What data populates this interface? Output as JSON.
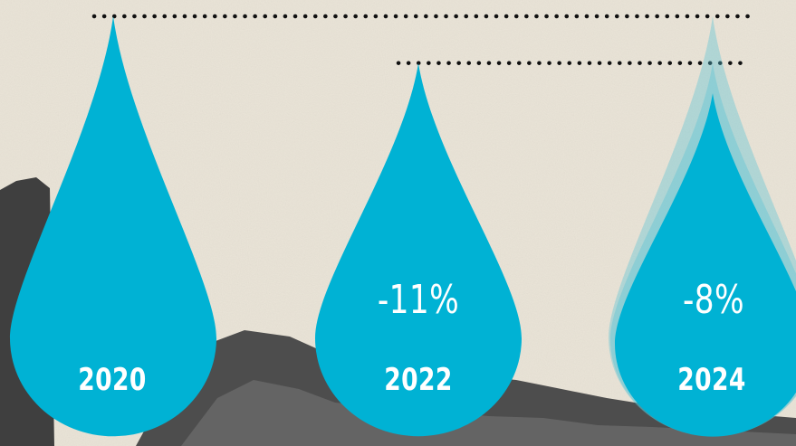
{
  "chart_data": {
    "type": "pictograph",
    "title": "",
    "categories": [
      "2020",
      "2022",
      "2024"
    ],
    "values": [
      100,
      89,
      81.88
    ],
    "changes": [
      "",
      "-11%",
      "-8%"
    ],
    "reference_lines": [
      "dotted",
      "dotted"
    ],
    "colors": {
      "drop": "#00b2d4",
      "drop_ghost": "#58c3d4",
      "background": "#e9e3d6",
      "mountain": "#4a4a4a",
      "dots": "#111111"
    }
  }
}
